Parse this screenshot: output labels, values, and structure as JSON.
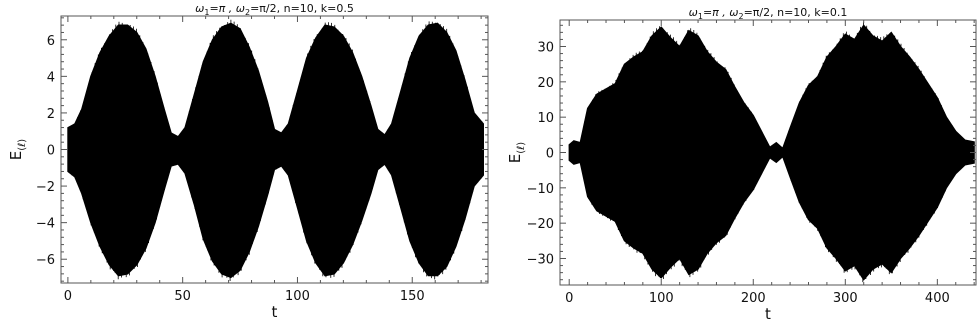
{
  "chart_data": [
    {
      "type": "line",
      "title": "ω1=π , ω2=π/2, n=10, k=0.5",
      "title_parts": {
        "p1": "ω",
        "s1": "1",
        "p2": "=π , ω",
        "s2": "2",
        "p3": "=π/2, n=10, k=0.5"
      },
      "xlabel": "t",
      "ylabel": "E(ℓ)",
      "ylabel_parts": {
        "main": "E",
        "sub": "(ℓ)"
      },
      "xlim": [
        -3,
        183
      ],
      "ylim": [
        -7.3,
        7.3
      ],
      "xticks": [
        0,
        50,
        100,
        150
      ],
      "xtick_labels": [
        "0",
        "50",
        "100",
        "150"
      ],
      "yticks": [
        -6,
        -4,
        -2,
        0,
        2,
        4,
        6
      ],
      "ytick_labels": [
        "−6",
        "−4",
        "−2",
        "0",
        "2",
        "4",
        "6"
      ],
      "series": [
        {
          "color": "#000000",
          "envelope": {
            "x": [
              0,
              3,
              6,
              10,
              14,
              18,
              22,
              26,
              30,
              34,
              38,
              42,
              45,
              48,
              51,
              55,
              59,
              63,
              67,
              71,
              75,
              79,
              83,
              87,
              90,
              93,
              96,
              100,
              104,
              108,
              112,
              116,
              120,
              124,
              128,
              132,
              135,
              138,
              141,
              145,
              149,
              153,
              157,
              161,
              165,
              169,
              173,
              177,
              181
            ],
            "upper": [
              1.2,
              1.4,
              2.2,
              4.0,
              5.3,
              6.2,
              6.8,
              6.8,
              6.4,
              5.5,
              4.0,
              2.2,
              0.9,
              0.7,
              1.2,
              3.0,
              4.8,
              6.0,
              6.7,
              6.9,
              6.6,
              5.6,
              4.3,
              2.6,
              1.1,
              0.9,
              1.4,
              3.2,
              5.0,
              6.1,
              6.8,
              6.7,
              6.2,
              5.3,
              4.0,
              2.4,
              1.1,
              0.8,
              1.4,
              3.2,
              5.0,
              6.2,
              6.8,
              6.9,
              6.4,
              5.4,
              3.8,
              2.0,
              1.4
            ],
            "lower": [
              -1.2,
              -1.5,
              -2.4,
              -4.0,
              -5.3,
              -6.3,
              -6.9,
              -6.8,
              -6.3,
              -5.4,
              -4.0,
              -2.2,
              -0.9,
              -0.8,
              -1.3,
              -3.0,
              -4.9,
              -6.1,
              -6.8,
              -7.0,
              -6.6,
              -5.6,
              -4.2,
              -2.5,
              -1.1,
              -0.9,
              -1.4,
              -3.2,
              -5.0,
              -6.2,
              -6.9,
              -6.8,
              -6.2,
              -5.2,
              -3.9,
              -2.4,
              -1.1,
              -0.8,
              -1.4,
              -3.2,
              -5.0,
              -6.2,
              -6.9,
              -6.9,
              -6.4,
              -5.3,
              -3.8,
              -2.0,
              -1.4
            ]
          }
        }
      ]
    },
    {
      "type": "line",
      "title": "ω1=π , ω2=π/2, n=10, k=0.1",
      "title_parts": {
        "p1": "ω",
        "s1": "1",
        "p2": "=π , ω",
        "s2": "2",
        "p3": "=π/2, n=10, k=0.1"
      },
      "xlabel": "t",
      "ylabel": "E(ℓ)",
      "ylabel_parts": {
        "main": "E",
        "sub": "(ℓ)"
      },
      "xlim": [
        -10,
        442
      ],
      "ylim": [
        -37.5,
        37.5
      ],
      "xticks": [
        0,
        100,
        200,
        300,
        400
      ],
      "xtick_labels": [
        "0",
        "100",
        "200",
        "300",
        "400"
      ],
      "yticks": [
        -30,
        -20,
        -10,
        0,
        10,
        20,
        30
      ],
      "ytick_labels": [
        "−30",
        "−20",
        "−10",
        "0",
        "10",
        "20",
        "30"
      ],
      "series": [
        {
          "color": "#000000",
          "envelope": {
            "x": [
              0,
              5,
              12,
              20,
              30,
              40,
              50,
              60,
              70,
              80,
              90,
              100,
              110,
              120,
              130,
              140,
              150,
              160,
              170,
              180,
              190,
              200,
              210,
              218,
              225,
              232,
              240,
              250,
              260,
              270,
              280,
              290,
              300,
              310,
              320,
              330,
              340,
              350,
              360,
              370,
              380,
              390,
              400,
              410,
              420,
              430,
              440
            ],
            "upper": [
              2.2,
              3.3,
              2.8,
              12.5,
              16.5,
              18.0,
              19.5,
              25.0,
              27.0,
              28.5,
              33.0,
              35.5,
              32.5,
              30.0,
              34.5,
              33.0,
              28.5,
              25.5,
              23.5,
              18.5,
              14.0,
              10.5,
              5.5,
              1.5,
              2.8,
              1.2,
              7.0,
              14.0,
              19.0,
              21.5,
              27.0,
              30.0,
              33.5,
              32.0,
              36.0,
              33.0,
              31.5,
              34.0,
              30.0,
              27.0,
              23.5,
              19.5,
              15.5,
              10.0,
              6.0,
              3.5,
              3.0
            ],
            "lower": [
              -2.2,
              -3.3,
              -2.8,
              -12.5,
              -16.5,
              -18.0,
              -19.5,
              -25.0,
              -27.0,
              -28.5,
              -33.0,
              -35.5,
              -32.5,
              -30.0,
              -34.5,
              -33.0,
              -28.5,
              -25.5,
              -23.5,
              -18.5,
              -14.0,
              -10.5,
              -5.5,
              -1.5,
              -2.8,
              -1.2,
              -7.0,
              -14.0,
              -19.0,
              -21.5,
              -27.0,
              -30.0,
              -33.5,
              -32.0,
              -36.0,
              -33.0,
              -31.5,
              -34.0,
              -30.0,
              -27.0,
              -23.5,
              -19.5,
              -15.5,
              -10.0,
              -6.0,
              -3.5,
              -3.0
            ]
          }
        }
      ]
    }
  ]
}
